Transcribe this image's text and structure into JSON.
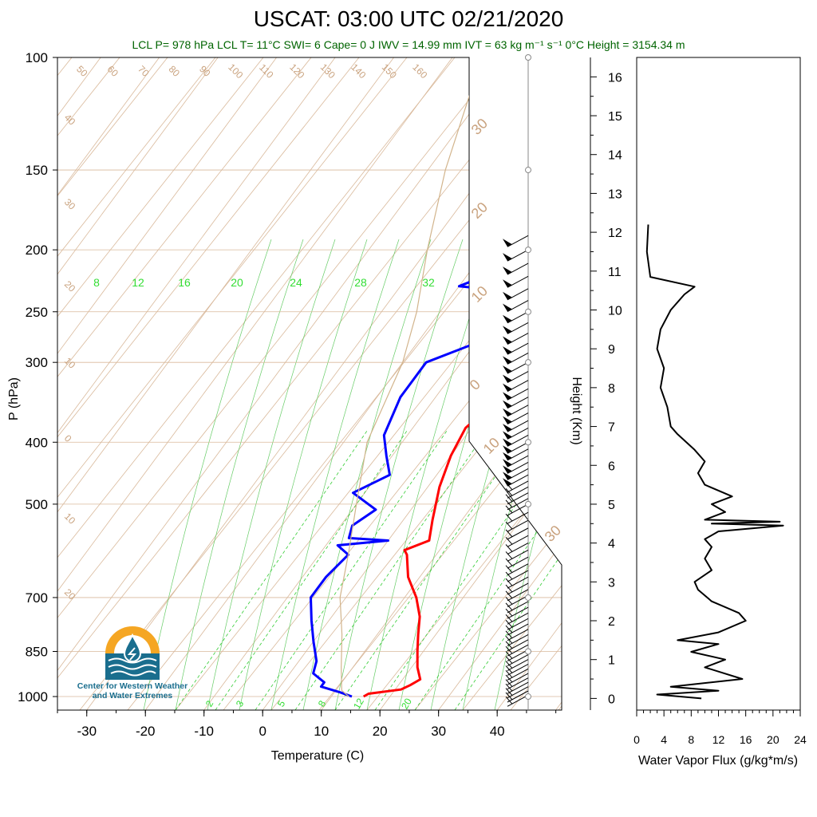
{
  "chart_data": [
    {
      "type": "line",
      "title": "USCAT: 03:00 UTC 02/21/2020",
      "subtitle": "LCL P= 978 hPa  LCL T= 11°C  SWI= 6  Cape= 0 J  IWV = 14.99 mm  IVT = 63 kg m⁻¹ s⁻¹  0°C Height = 3154.34 m",
      "xlabel": "Temperature (C)",
      "ylabel": "P (hPa)",
      "y_scale": "log",
      "xlim": [
        -35,
        51
      ],
      "ylim": [
        1050,
        100
      ],
      "x_ticks": [
        "-30",
        "-20",
        "-10",
        "0",
        "10",
        "20",
        "30",
        "40"
      ],
      "y_ticks": [
        "100",
        "150",
        "200",
        "250",
        "300",
        "400",
        "500",
        "700",
        "850",
        "1000"
      ],
      "dry_adiabat_labels": [
        "50",
        "60",
        "70",
        "80",
        "90",
        "100",
        "110",
        "120",
        "130",
        "140",
        "150",
        "160"
      ],
      "mixing_ratio_labels_top": [
        "8",
        "12",
        "16",
        "20",
        "24",
        "28",
        "32"
      ],
      "mixing_ratio_labels_bottom": [
        "2",
        "3",
        "5",
        "8",
        "12",
        "20"
      ],
      "isotherm_labels_left": [
        "40",
        "30",
        "20",
        "10",
        "0",
        "10",
        "20"
      ],
      "isotherm_labels_right": [
        "30",
        "20",
        "10",
        "0",
        "10",
        "30"
      ],
      "series": [
        {
          "name": "Temperature",
          "color": "#ff0000",
          "points": [
            [
              15.5,
              1000
            ],
            [
              16,
              990
            ],
            [
              21,
              975
            ],
            [
              22,
              960
            ],
            [
              23,
              940
            ],
            [
              21,
              900
            ],
            [
              19,
              850
            ],
            [
              17,
              800
            ],
            [
              15,
              750
            ],
            [
              12,
              700
            ],
            [
              8,
              650
            ],
            [
              5,
              600
            ],
            [
              4,
              590
            ],
            [
              7,
              570
            ],
            [
              5,
              530
            ],
            [
              2,
              470
            ],
            [
              0,
              420
            ],
            [
              -1,
              380
            ],
            [
              1,
              340
            ],
            [
              -2,
              300
            ],
            [
              1,
              280
            ],
            [
              0,
              250
            ],
            [
              -1,
              230
            ],
            [
              3,
              215
            ],
            [
              6,
              200
            ],
            [
              7,
              190
            ]
          ]
        },
        {
          "name": "Dewpoint",
          "color": "#0000ff",
          "points": [
            [
              13.5,
              1000
            ],
            [
              11,
              985
            ],
            [
              7,
              965
            ],
            [
              7,
              950
            ],
            [
              4,
              920
            ],
            [
              3,
              880
            ],
            [
              0,
              820
            ],
            [
              -3,
              760
            ],
            [
              -6,
              700
            ],
            [
              -6,
              650
            ],
            [
              -5,
              600
            ],
            [
              -8,
              580
            ],
            [
              0,
              570
            ],
            [
              -7,
              565
            ],
            [
              -8,
              540
            ],
            [
              -6,
              510
            ],
            [
              -12,
              480
            ],
            [
              -8,
              450
            ],
            [
              -11,
              420
            ],
            [
              -14,
              390
            ],
            [
              -16,
              340
            ],
            [
              -16,
              300
            ],
            [
              -10,
              280
            ],
            [
              -9,
              250
            ],
            [
              -5,
              235
            ],
            [
              -20,
              228
            ],
            [
              -13,
              210
            ],
            [
              -14,
              195
            ],
            [
              -13,
              190
            ]
          ]
        },
        {
          "name": "Parcel",
          "color": "#d2b48c",
          "points": [
            [
              13,
              1000
            ],
            [
              11,
              978
            ],
            [
              8,
              900
            ],
            [
              4,
              800
            ],
            [
              -1,
              700
            ],
            [
              -5,
              600
            ],
            [
              -10,
              500
            ],
            [
              -16,
              400
            ],
            [
              -20,
              300
            ],
            [
              -24,
              250
            ],
            [
              -30,
              200
            ],
            [
              -37,
              150
            ],
            [
              -45,
              100
            ]
          ]
        }
      ]
    },
    {
      "type": "line",
      "xlabel": "Water Vapor Flux (g/kg*m/s)",
      "ylabel": "Height (Km)",
      "xlim": [
        0,
        24
      ],
      "ylim": [
        -0.3,
        16.5
      ],
      "x_ticks": [
        "0",
        "4",
        "8",
        "12",
        "16",
        "20",
        "24"
      ],
      "y_ticks": [
        "0",
        "1",
        "2",
        "3",
        "4",
        "5",
        "6",
        "7",
        "8",
        "9",
        "10",
        "11",
        "12",
        "13",
        "14",
        "15",
        "16"
      ],
      "series": [
        {
          "color": "#000000",
          "points": [
            [
              9.5,
              0
            ],
            [
              3.0,
              0.1
            ],
            [
              12.0,
              0.2
            ],
            [
              5.0,
              0.3
            ],
            [
              15.5,
              0.5
            ],
            [
              10.0,
              0.8
            ],
            [
              13.0,
              1.0
            ],
            [
              8.0,
              1.2
            ],
            [
              12.0,
              1.4
            ],
            [
              6.0,
              1.5
            ],
            [
              12.0,
              1.7
            ],
            [
              16.0,
              2.0
            ],
            [
              15.0,
              2.2
            ],
            [
              11.0,
              2.5
            ],
            [
              9.0,
              2.8
            ],
            [
              8.5,
              3.0
            ],
            [
              11.0,
              3.3
            ],
            [
              10.0,
              3.6
            ],
            [
              11.0,
              3.9
            ],
            [
              10.0,
              4.1
            ],
            [
              12.0,
              4.3
            ],
            [
              21.5,
              4.45
            ],
            [
              11.0,
              4.5
            ],
            [
              21.0,
              4.55
            ],
            [
              10.0,
              4.6
            ],
            [
              13.0,
              4.8
            ],
            [
              11.0,
              5.0
            ],
            [
              14.0,
              5.2
            ],
            [
              10.0,
              5.5
            ],
            [
              9.0,
              5.8
            ],
            [
              10.0,
              6.1
            ],
            [
              8.5,
              6.4
            ],
            [
              6.0,
              6.8
            ],
            [
              5.0,
              7.0
            ],
            [
              4.5,
              7.5
            ],
            [
              3.5,
              8.0
            ],
            [
              4.0,
              8.5
            ],
            [
              3.0,
              9.0
            ],
            [
              3.5,
              9.5
            ],
            [
              5.0,
              10.0
            ],
            [
              7.0,
              10.4
            ],
            [
              8.5,
              10.6
            ],
            [
              2.0,
              10.85
            ],
            [
              1.5,
              11.5
            ],
            [
              1.7,
              12.2
            ]
          ]
        }
      ]
    }
  ],
  "logo": {
    "line1": "Center for Western Weather",
    "line2": "and Water Extremes",
    "colors": {
      "ring": "#f5a623",
      "water": "#1a6e8e"
    }
  }
}
